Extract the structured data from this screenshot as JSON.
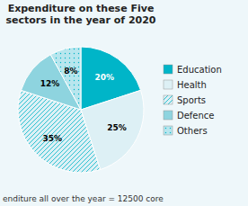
{
  "chart_data": {
    "type": "pie",
    "title": "Expenditure on these Five\nsectors in the year of 2020",
    "subtitle": "enditure all over the year = 12500 core",
    "categories": [
      "Education",
      "Health",
      "Sports",
      "Defence",
      "Others"
    ],
    "values": [
      20,
      25,
      35,
      12,
      8
    ],
    "value_labels": [
      "20%",
      "25%",
      "35%",
      "12%",
      "8%"
    ],
    "colors": [
      "#00b5c8",
      "#ddf0f5",
      "#ddf0f5",
      "#8ed4df",
      "#b8e6ee"
    ],
    "data_labels": true,
    "legend": "right"
  }
}
